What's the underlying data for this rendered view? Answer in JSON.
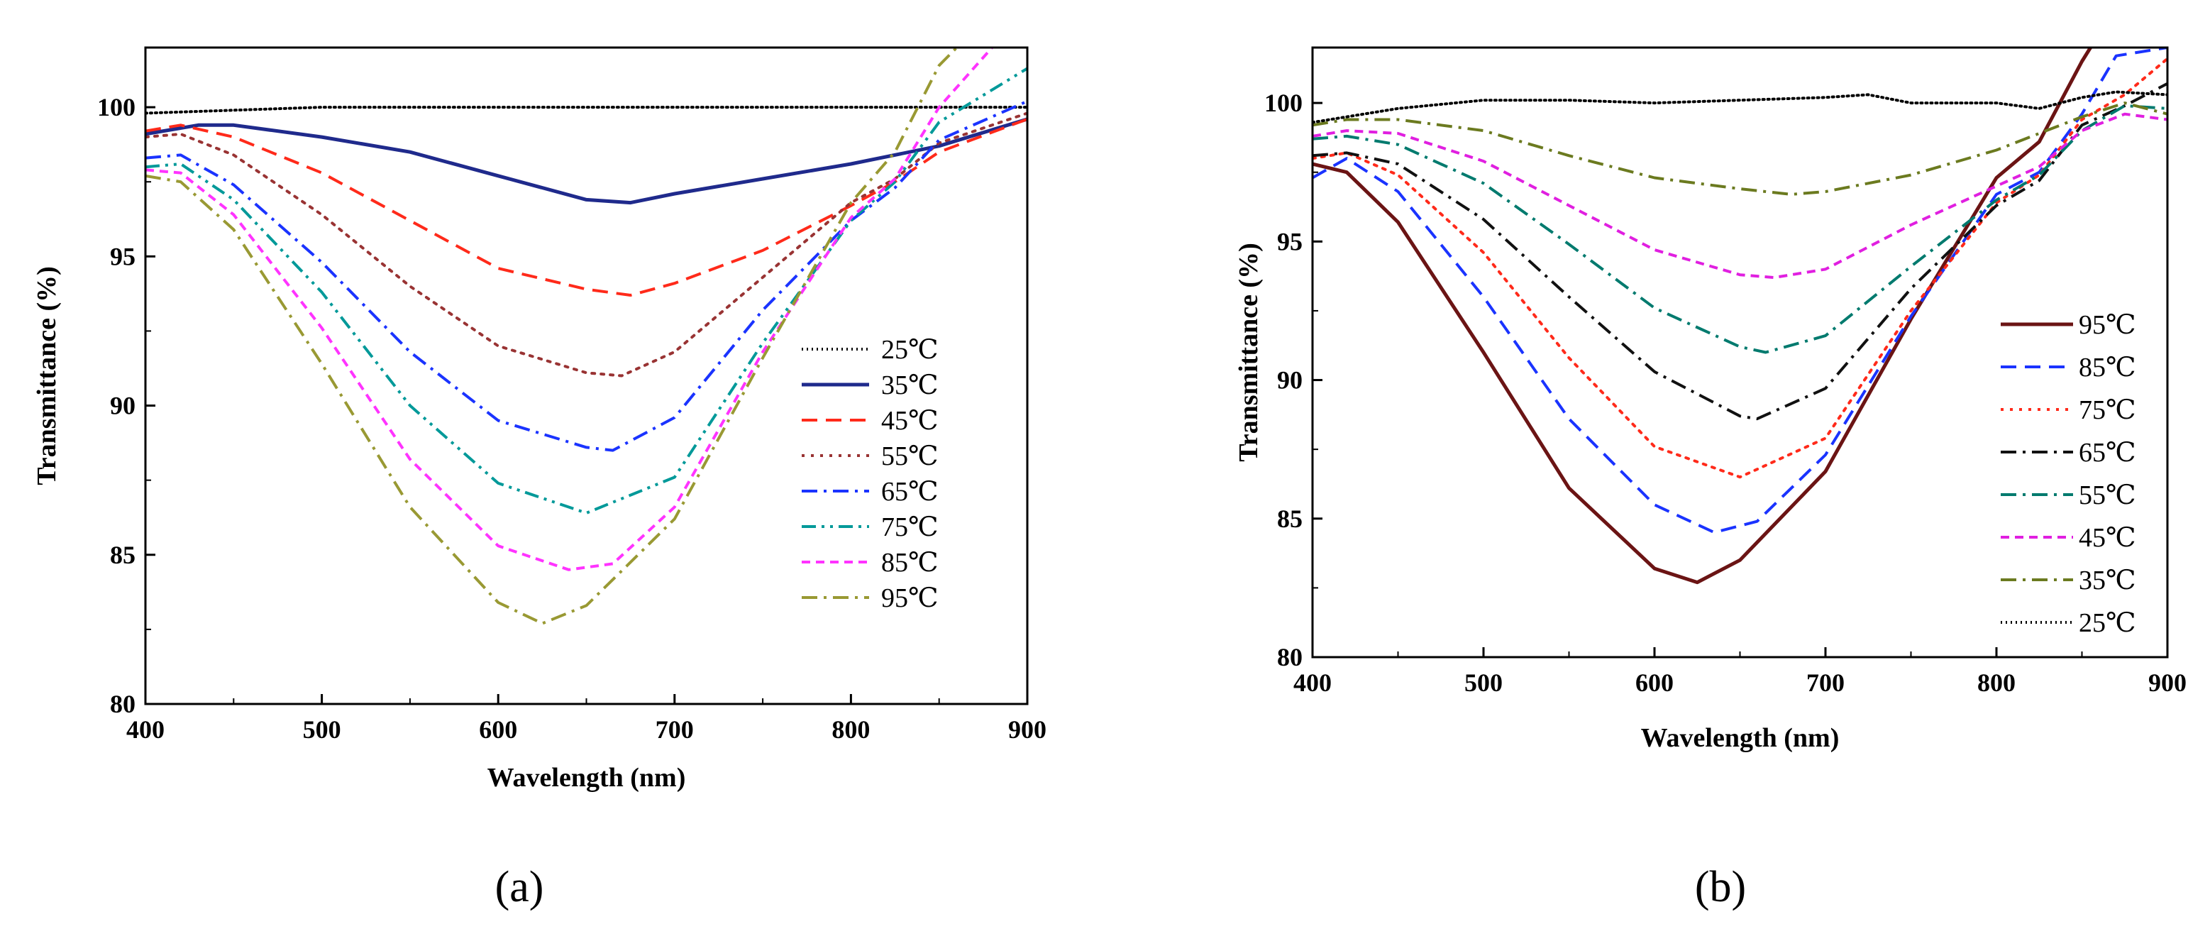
{
  "chart_data": [
    {
      "type": "line",
      "panel_label": "(a)",
      "xlabel": "Wavelength (nm)",
      "ylabel": "Transmittance (%)",
      "xlim": [
        400,
        900
      ],
      "ylim": [
        80,
        102
      ],
      "xticks": [
        400,
        500,
        600,
        700,
        800,
        900
      ],
      "yticks": [
        80,
        85,
        90,
        95,
        100
      ],
      "legend_position": "right-middle",
      "series": [
        {
          "name": "25℃",
          "color": "#000000",
          "dash": "dotted",
          "x": [
            400,
            450,
            500,
            550,
            600,
            650,
            700,
            750,
            800,
            850,
            900
          ],
          "y": [
            99.8,
            99.9,
            100.0,
            100.0,
            100.0,
            100.0,
            100.0,
            100.0,
            100.0,
            100.0,
            100.0
          ]
        },
        {
          "name": "35℃",
          "color": "#1f2a8c",
          "dash": "solid",
          "x": [
            400,
            430,
            450,
            500,
            550,
            600,
            650,
            675,
            700,
            750,
            800,
            850,
            900
          ],
          "y": [
            99.1,
            99.4,
            99.4,
            99.0,
            98.5,
            97.7,
            96.9,
            96.8,
            97.1,
            97.6,
            98.1,
            98.7,
            99.6
          ]
        },
        {
          "name": "45℃",
          "color": "#ff2a1a",
          "dash": "dash",
          "x": [
            400,
            420,
            450,
            500,
            550,
            600,
            650,
            675,
            700,
            750,
            800,
            825,
            850,
            900
          ],
          "y": [
            99.2,
            99.4,
            99.0,
            97.8,
            96.2,
            94.6,
            93.9,
            93.7,
            94.1,
            95.2,
            96.7,
            97.5,
            98.5,
            99.6
          ]
        },
        {
          "name": "55℃",
          "color": "#993333",
          "dash": "dot",
          "x": [
            400,
            420,
            450,
            500,
            550,
            600,
            650,
            670,
            700,
            750,
            800,
            825,
            850,
            900
          ],
          "y": [
            99.0,
            99.1,
            98.4,
            96.4,
            94.0,
            92.0,
            91.1,
            91.0,
            91.8,
            94.3,
            96.8,
            97.6,
            98.8,
            99.8
          ]
        },
        {
          "name": "65℃",
          "color": "#1a33ff",
          "dash": "dashdot",
          "x": [
            400,
            420,
            450,
            500,
            550,
            600,
            650,
            665,
            700,
            750,
            800,
            825,
            850,
            900
          ],
          "y": [
            98.3,
            98.4,
            97.4,
            94.8,
            91.8,
            89.5,
            88.6,
            88.5,
            89.6,
            93.2,
            96.2,
            97.3,
            98.9,
            100.2
          ]
        },
        {
          "name": "75℃",
          "color": "#009999",
          "dash": "dashdotdot",
          "x": [
            400,
            420,
            450,
            500,
            550,
            600,
            650,
            700,
            750,
            800,
            825,
            850,
            900
          ],
          "y": [
            98.0,
            98.1,
            96.9,
            93.8,
            90.0,
            87.4,
            86.4,
            87.6,
            92.1,
            96.2,
            97.5,
            99.5,
            101.3
          ]
        },
        {
          "name": "85℃",
          "color": "#ff33ff",
          "dash": "shortdash",
          "x": [
            400,
            420,
            450,
            500,
            550,
            600,
            640,
            665,
            700,
            750,
            800,
            825,
            850,
            880
          ],
          "y": [
            97.9,
            97.8,
            96.4,
            92.6,
            88.2,
            85.3,
            84.5,
            84.7,
            86.6,
            91.8,
            96.3,
            97.6,
            100.0,
            102.0
          ]
        },
        {
          "name": "95℃",
          "color": "#999933",
          "dash": "dashdot",
          "x": [
            400,
            420,
            450,
            500,
            550,
            600,
            625,
            650,
            700,
            750,
            800,
            825,
            850,
            860
          ],
          "y": [
            97.7,
            97.5,
            95.9,
            91.4,
            86.6,
            83.4,
            82.7,
            83.3,
            86.2,
            91.6,
            96.8,
            98.5,
            101.4,
            102.0
          ]
        }
      ]
    },
    {
      "type": "line",
      "panel_label": "(b)",
      "xlabel": "Wavelength (nm)",
      "ylabel": "Transmittance (%)",
      "xlim": [
        400,
        900
      ],
      "ylim": [
        80,
        102
      ],
      "xticks": [
        400,
        500,
        600,
        700,
        800,
        900
      ],
      "yticks": [
        80,
        85,
        90,
        95,
        100
      ],
      "legend_position": "right-middle",
      "series": [
        {
          "name": "95℃",
          "color": "#6b1414",
          "dash": "solid",
          "x": [
            400,
            420,
            450,
            500,
            550,
            600,
            625,
            650,
            700,
            750,
            800,
            825,
            850,
            855
          ],
          "y": [
            97.8,
            97.5,
            95.7,
            91.0,
            86.1,
            83.2,
            82.7,
            83.5,
            86.7,
            92.2,
            97.3,
            98.6,
            101.5,
            102.0
          ]
        },
        {
          "name": "85℃",
          "color": "#1a33ff",
          "dash": "dash",
          "x": [
            400,
            420,
            450,
            500,
            550,
            600,
            635,
            660,
            700,
            750,
            800,
            825,
            850,
            870,
            900
          ],
          "y": [
            97.3,
            98.0,
            96.8,
            93.0,
            88.6,
            85.5,
            84.5,
            84.9,
            87.3,
            92.3,
            96.7,
            97.5,
            99.6,
            101.7,
            102.0
          ]
        },
        {
          "name": "75℃",
          "color": "#ff2a1a",
          "dash": "dot",
          "x": [
            400,
            420,
            450,
            500,
            550,
            600,
            650,
            700,
            750,
            800,
            825,
            850,
            875,
            900
          ],
          "y": [
            98.0,
            98.2,
            97.4,
            94.6,
            90.8,
            87.6,
            86.5,
            87.9,
            92.5,
            96.4,
            97.4,
            99.4,
            100.3,
            101.6
          ]
        },
        {
          "name": "65℃",
          "color": "#111111",
          "dash": "dashdot",
          "x": [
            400,
            420,
            450,
            500,
            550,
            600,
            650,
            660,
            700,
            750,
            800,
            825,
            850,
            875,
            900
          ],
          "y": [
            98.1,
            98.2,
            97.8,
            95.8,
            93.0,
            90.3,
            88.7,
            88.6,
            89.7,
            93.3,
            96.3,
            97.2,
            99.2,
            99.9,
            100.7
          ]
        },
        {
          "name": "55℃",
          "color": "#007a6e",
          "dash": "dashdot",
          "x": [
            400,
            420,
            450,
            500,
            550,
            600,
            650,
            665,
            700,
            750,
            800,
            825,
            850,
            875,
            900
          ],
          "y": [
            98.7,
            98.8,
            98.5,
            97.1,
            94.9,
            92.6,
            91.2,
            91.0,
            91.6,
            94.1,
            96.5,
            97.4,
            99.0,
            99.9,
            99.8
          ]
        },
        {
          "name": "45℃",
          "color": "#e01fe0",
          "dash": "shortdash",
          "x": [
            400,
            420,
            450,
            500,
            550,
            600,
            650,
            670,
            700,
            750,
            800,
            825,
            850,
            875,
            900
          ],
          "y": [
            98.8,
            99.0,
            98.9,
            97.9,
            96.3,
            94.7,
            93.8,
            93.7,
            94.0,
            95.6,
            97.0,
            97.7,
            99.0,
            99.6,
            99.4
          ]
        },
        {
          "name": "35℃",
          "color": "#6b7a1f",
          "dash": "dashdot",
          "x": [
            400,
            420,
            450,
            500,
            550,
            600,
            650,
            680,
            700,
            750,
            800,
            825,
            850,
            875,
            900
          ],
          "y": [
            99.2,
            99.4,
            99.4,
            99.0,
            98.1,
            97.3,
            96.9,
            96.7,
            96.8,
            97.4,
            98.3,
            98.9,
            99.5,
            100.0,
            99.6
          ]
        },
        {
          "name": "25℃",
          "color": "#000000",
          "dash": "dotted",
          "x": [
            400,
            450,
            500,
            550,
            600,
            650,
            700,
            725,
            750,
            800,
            825,
            850,
            870,
            900
          ],
          "y": [
            99.3,
            99.8,
            100.1,
            100.1,
            100.0,
            100.1,
            100.2,
            100.3,
            100.0,
            100.0,
            99.8,
            100.2,
            100.4,
            100.3
          ]
        }
      ]
    }
  ]
}
